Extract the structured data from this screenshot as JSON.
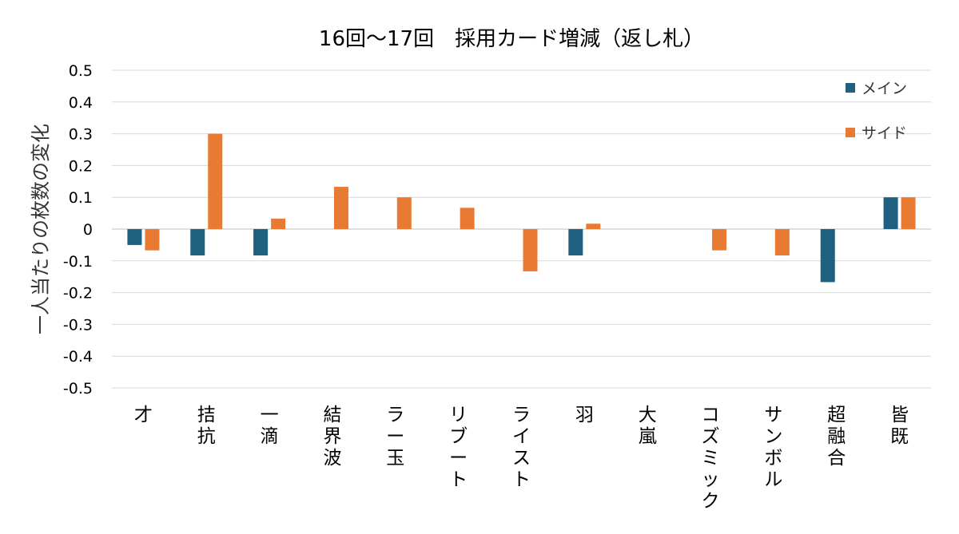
{
  "chart_data": {
    "type": "bar",
    "title": "16回～17回　採用カード増減（返し札）",
    "ylabel": "一人当たりの枚数の変化",
    "xlabel": "",
    "ylim": [
      -0.5,
      0.5
    ],
    "yticks": [
      "0.5",
      "0.4",
      "0.3",
      "0.2",
      "0.1",
      "0",
      "-0.1",
      "-0.2",
      "-0.3",
      "-0.4",
      "-0.5"
    ],
    "ytick_values": [
      0.5,
      0.4,
      0.3,
      0.2,
      0.1,
      0,
      -0.1,
      -0.2,
      -0.3,
      -0.4,
      -0.5
    ],
    "grid": true,
    "legend_position": "top-right",
    "categories": [
      "才",
      "拮抗",
      "一滴",
      "結界波",
      "ラー玉",
      "リブート",
      "ライスト",
      "羽",
      "大嵐",
      "コズミック",
      "サンボル",
      "超融合",
      "皆既"
    ],
    "series": [
      {
        "name": "メイン",
        "color": "#1f5f7f",
        "values": [
          -0.05,
          -0.083,
          -0.083,
          0,
          0,
          0,
          0,
          -0.083,
          0,
          0,
          0,
          -0.167,
          0.1
        ]
      },
      {
        "name": "サイド",
        "color": "#e97a34",
        "values": [
          -0.067,
          0.3,
          0.033,
          0.133,
          0.1,
          0.067,
          -0.133,
          0.017,
          0,
          -0.067,
          -0.083,
          0,
          0.1
        ]
      }
    ]
  }
}
